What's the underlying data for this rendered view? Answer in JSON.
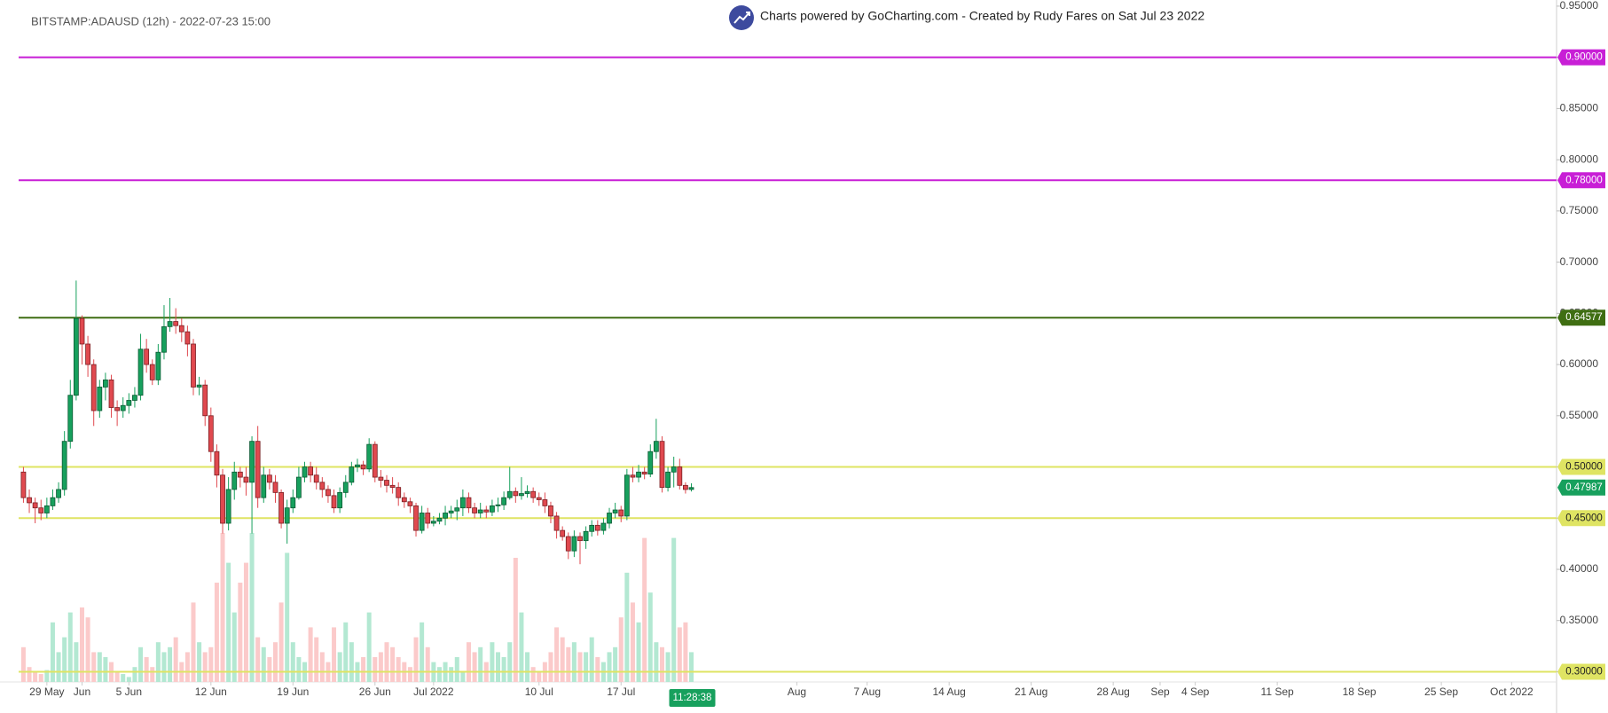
{
  "chart_data": {
    "type": "candlestick",
    "title": "BITSTAMP:ADAUSD (12h) - 2022-07-23 15:00",
    "subtitle": "Charts powered by GoCharting.com - Created by Rudy Fares on Sat Jul 23 2022",
    "up_color": "#17a05d",
    "down_color": "#e0494f",
    "volume_up_color": "#b3e8d2",
    "volume_down_color": "#fbcaca",
    "x": [
      "2022-05-27 00:00",
      "2022-05-27 12:00",
      "2022-05-28 00:00",
      "2022-05-28 12:00",
      "2022-05-29 00:00",
      "2022-05-29 12:00",
      "2022-05-30 00:00",
      "2022-05-30 12:00",
      "2022-05-31 00:00",
      "2022-05-31 12:00",
      "2022-06-01 00:00",
      "2022-06-01 12:00",
      "2022-06-02 00:00",
      "2022-06-02 12:00",
      "2022-06-03 00:00",
      "2022-06-03 12:00",
      "2022-06-04 00:00",
      "2022-06-04 12:00",
      "2022-06-05 00:00",
      "2022-06-05 12:00",
      "2022-06-06 00:00",
      "2022-06-06 12:00",
      "2022-06-07 00:00",
      "2022-06-07 12:00",
      "2022-06-08 00:00",
      "2022-06-08 12:00",
      "2022-06-09 00:00",
      "2022-06-09 12:00",
      "2022-06-10 00:00",
      "2022-06-10 12:00",
      "2022-06-11 00:00",
      "2022-06-11 12:00",
      "2022-06-12 00:00",
      "2022-06-12 12:00",
      "2022-06-13 00:00",
      "2022-06-13 12:00",
      "2022-06-14 00:00",
      "2022-06-14 12:00",
      "2022-06-15 00:00",
      "2022-06-15 12:00",
      "2022-06-16 00:00",
      "2022-06-16 12:00",
      "2022-06-17 00:00",
      "2022-06-17 12:00",
      "2022-06-18 00:00",
      "2022-06-18 12:00",
      "2022-06-19 00:00",
      "2022-06-19 12:00",
      "2022-06-20 00:00",
      "2022-06-20 12:00",
      "2022-06-21 00:00",
      "2022-06-21 12:00",
      "2022-06-22 00:00",
      "2022-06-22 12:00",
      "2022-06-23 00:00",
      "2022-06-23 12:00",
      "2022-06-24 00:00",
      "2022-06-24 12:00",
      "2022-06-25 00:00",
      "2022-06-25 12:00",
      "2022-06-26 00:00",
      "2022-06-26 12:00",
      "2022-06-27 00:00",
      "2022-06-27 12:00",
      "2022-06-28 00:00",
      "2022-06-28 12:00",
      "2022-06-29 00:00",
      "2022-06-29 12:00",
      "2022-06-30 00:00",
      "2022-06-30 12:00",
      "2022-07-01 00:00",
      "2022-07-01 12:00",
      "2022-07-02 00:00",
      "2022-07-02 12:00",
      "2022-07-03 00:00",
      "2022-07-03 12:00",
      "2022-07-04 00:00",
      "2022-07-04 12:00",
      "2022-07-05 00:00",
      "2022-07-05 12:00",
      "2022-07-06 00:00",
      "2022-07-06 12:00",
      "2022-07-07 00:00",
      "2022-07-07 12:00",
      "2022-07-08 00:00",
      "2022-07-08 12:00",
      "2022-07-09 00:00",
      "2022-07-09 12:00",
      "2022-07-10 00:00",
      "2022-07-10 12:00",
      "2022-07-11 00:00",
      "2022-07-11 12:00",
      "2022-07-12 00:00",
      "2022-07-12 12:00",
      "2022-07-13 00:00",
      "2022-07-13 12:00",
      "2022-07-14 00:00",
      "2022-07-14 12:00",
      "2022-07-15 00:00",
      "2022-07-15 12:00",
      "2022-07-16 00:00",
      "2022-07-16 12:00",
      "2022-07-17 00:00",
      "2022-07-17 12:00",
      "2022-07-18 00:00",
      "2022-07-18 12:00",
      "2022-07-19 00:00",
      "2022-07-19 12:00",
      "2022-07-20 00:00",
      "2022-07-20 12:00",
      "2022-07-21 00:00",
      "2022-07-21 12:00",
      "2022-07-22 00:00",
      "2022-07-22 12:00",
      "2022-07-23 00:00"
    ],
    "open": [
      0.495,
      0.47,
      0.465,
      0.46,
      0.455,
      0.462,
      0.47,
      0.478,
      0.525,
      0.57,
      0.645,
      0.62,
      0.6,
      0.555,
      0.578,
      0.585,
      0.558,
      0.555,
      0.56,
      0.565,
      0.57,
      0.615,
      0.6,
      0.585,
      0.612,
      0.637,
      0.642,
      0.638,
      0.632,
      0.62,
      0.578,
      0.58,
      0.55,
      0.515,
      0.492,
      0.445,
      0.478,
      0.495,
      0.49,
      0.485,
      0.525,
      0.47,
      0.492,
      0.485,
      0.475,
      0.445,
      0.46,
      0.47,
      0.49,
      0.5,
      0.492,
      0.485,
      0.478,
      0.472,
      0.46,
      0.475,
      0.485,
      0.5,
      0.502,
      0.498,
      0.522,
      0.49,
      0.487,
      0.482,
      0.48,
      0.47,
      0.466,
      0.462,
      0.438,
      0.455,
      0.445,
      0.447,
      0.45,
      0.455,
      0.457,
      0.46,
      0.47,
      0.46,
      0.455,
      0.458,
      0.456,
      0.462,
      0.463,
      0.47,
      0.476,
      0.472,
      0.474,
      0.476,
      0.47,
      0.468,
      0.462,
      0.452,
      0.438,
      0.432,
      0.418,
      0.432,
      0.428,
      0.437,
      0.443,
      0.438,
      0.445,
      0.455,
      0.458,
      0.452,
      0.492,
      0.49,
      0.495,
      0.493,
      0.515,
      0.525,
      0.48,
      0.495,
      0.5,
      0.482,
      0.478
    ],
    "high": [
      0.5,
      0.478,
      0.47,
      0.468,
      0.47,
      0.478,
      0.485,
      0.535,
      0.585,
      0.682,
      0.648,
      0.628,
      0.605,
      0.585,
      0.592,
      0.59,
      0.565,
      0.568,
      0.572,
      0.578,
      0.63,
      0.625,
      0.605,
      0.62,
      0.658,
      0.665,
      0.655,
      0.645,
      0.638,
      0.625,
      0.588,
      0.585,
      0.558,
      0.522,
      0.498,
      0.49,
      0.505,
      0.5,
      0.5,
      0.53,
      0.54,
      0.5,
      0.498,
      0.492,
      0.478,
      0.468,
      0.478,
      0.5,
      0.505,
      0.505,
      0.5,
      0.49,
      0.482,
      0.478,
      0.48,
      0.492,
      0.505,
      0.508,
      0.506,
      0.528,
      0.525,
      0.497,
      0.492,
      0.49,
      0.485,
      0.475,
      0.47,
      0.465,
      0.462,
      0.46,
      0.452,
      0.455,
      0.462,
      0.462,
      0.468,
      0.478,
      0.475,
      0.465,
      0.465,
      0.462,
      0.468,
      0.47,
      0.476,
      0.5,
      0.48,
      0.49,
      0.482,
      0.48,
      0.475,
      0.475,
      0.466,
      0.456,
      0.442,
      0.436,
      0.438,
      0.436,
      0.442,
      0.448,
      0.448,
      0.45,
      0.46,
      0.465,
      0.462,
      0.498,
      0.5,
      0.502,
      0.5,
      0.522,
      0.547,
      0.53,
      0.5,
      0.51,
      0.508,
      0.485,
      0.484
    ],
    "low": [
      0.465,
      0.455,
      0.445,
      0.448,
      0.45,
      0.458,
      0.465,
      0.472,
      0.518,
      0.565,
      0.6,
      0.588,
      0.54,
      0.548,
      0.565,
      0.548,
      0.54,
      0.548,
      0.552,
      0.558,
      0.565,
      0.592,
      0.58,
      0.58,
      0.605,
      0.632,
      0.63,
      0.622,
      0.608,
      0.57,
      0.57,
      0.54,
      0.505,
      0.48,
      0.435,
      0.438,
      0.468,
      0.48,
      0.472,
      0.435,
      0.46,
      0.465,
      0.478,
      0.465,
      0.44,
      0.425,
      0.455,
      0.468,
      0.485,
      0.485,
      0.478,
      0.47,
      0.465,
      0.455,
      0.455,
      0.47,
      0.482,
      0.495,
      0.492,
      0.495,
      0.485,
      0.48,
      0.475,
      0.474,
      0.462,
      0.46,
      0.455,
      0.432,
      0.435,
      0.44,
      0.442,
      0.444,
      0.443,
      0.45,
      0.448,
      0.452,
      0.455,
      0.45,
      0.45,
      0.45,
      0.452,
      0.456,
      0.458,
      0.468,
      0.465,
      0.468,
      0.47,
      0.465,
      0.462,
      0.455,
      0.445,
      0.43,
      0.428,
      0.41,
      0.412,
      0.405,
      0.42,
      0.432,
      0.433,
      0.434,
      0.44,
      0.45,
      0.446,
      0.448,
      0.485,
      0.485,
      0.488,
      0.49,
      0.508,
      0.475,
      0.476,
      0.48,
      0.478,
      0.474,
      0.476
    ],
    "close": [
      0.47,
      0.465,
      0.46,
      0.455,
      0.462,
      0.47,
      0.478,
      0.525,
      0.57,
      0.645,
      0.62,
      0.6,
      0.555,
      0.578,
      0.585,
      0.558,
      0.555,
      0.56,
      0.565,
      0.57,
      0.615,
      0.6,
      0.585,
      0.612,
      0.637,
      0.642,
      0.638,
      0.632,
      0.62,
      0.578,
      0.58,
      0.55,
      0.515,
      0.492,
      0.445,
      0.478,
      0.495,
      0.49,
      0.485,
      0.525,
      0.47,
      0.492,
      0.485,
      0.475,
      0.445,
      0.46,
      0.47,
      0.49,
      0.5,
      0.492,
      0.485,
      0.478,
      0.472,
      0.46,
      0.475,
      0.485,
      0.5,
      0.502,
      0.498,
      0.522,
      0.49,
      0.487,
      0.482,
      0.48,
      0.47,
      0.466,
      0.462,
      0.438,
      0.455,
      0.445,
      0.447,
      0.45,
      0.455,
      0.457,
      0.46,
      0.47,
      0.46,
      0.455,
      0.458,
      0.456,
      0.462,
      0.463,
      0.47,
      0.476,
      0.472,
      0.474,
      0.476,
      0.47,
      0.468,
      0.462,
      0.452,
      0.438,
      0.432,
      0.418,
      0.432,
      0.428,
      0.437,
      0.443,
      0.438,
      0.445,
      0.455,
      0.458,
      0.452,
      0.492,
      0.49,
      0.495,
      0.493,
      0.515,
      0.525,
      0.48,
      0.495,
      0.5,
      0.482,
      0.478,
      0.47987
    ],
    "volume": [
      35,
      15,
      10,
      8,
      12,
      60,
      30,
      45,
      70,
      40,
      75,
      65,
      30,
      30,
      25,
      20,
      10,
      8,
      5,
      15,
      35,
      25,
      15,
      40,
      30,
      35,
      45,
      20,
      30,
      80,
      40,
      30,
      35,
      100,
      150,
      120,
      70,
      100,
      120,
      150,
      45,
      35,
      25,
      40,
      80,
      130,
      40,
      25,
      20,
      55,
      45,
      30,
      20,
      55,
      30,
      60,
      40,
      20,
      25,
      70,
      25,
      30,
      40,
      35,
      25,
      20,
      15,
      45,
      60,
      35,
      20,
      15,
      20,
      15,
      25,
      10,
      40,
      30,
      35,
      20,
      40,
      30,
      25,
      40,
      125,
      70,
      30,
      15,
      10,
      20,
      30,
      55,
      45,
      35,
      40,
      30,
      30,
      45,
      25,
      20,
      30,
      35,
      65,
      110,
      80,
      60,
      145,
      90,
      40,
      35,
      30,
      145,
      55,
      60,
      30
    ],
    "xlim": [
      "2022-05-25 00:00",
      "2022-10-04 20:00"
    ],
    "xticks": [
      {
        "value": "2022-05-29 00:00",
        "label": "29 May"
      },
      {
        "value": "2022-06-01 00:00",
        "label": "Jun"
      },
      {
        "value": "2022-06-05 00:00",
        "label": "5 Jun"
      },
      {
        "value": "2022-06-12 00:00",
        "label": "12 Jun"
      },
      {
        "value": "2022-06-19 00:00",
        "label": "19 Jun"
      },
      {
        "value": "2022-06-26 00:00",
        "label": "26 Jun"
      },
      {
        "value": "2022-07-01 00:00",
        "label": "Jul 2022"
      },
      {
        "value": "2022-07-10 00:00",
        "label": "10 Jul"
      },
      {
        "value": "2022-07-17 00:00",
        "label": "17 Jul"
      },
      {
        "value": "2022-08-01 00:00",
        "label": "Aug"
      },
      {
        "value": "2022-08-07 00:00",
        "label": "7 Aug"
      },
      {
        "value": "2022-08-14 00:00",
        "label": "14 Aug"
      },
      {
        "value": "2022-08-21 00:00",
        "label": "21 Aug"
      },
      {
        "value": "2022-08-28 00:00",
        "label": "28 Aug"
      },
      {
        "value": "2022-09-01 00:00",
        "label": "Sep"
      },
      {
        "value": "2022-09-04 00:00",
        "label": "4 Sep"
      },
      {
        "value": "2022-09-11 00:00",
        "label": "11 Sep"
      },
      {
        "value": "2022-09-18 00:00",
        "label": "18 Sep"
      },
      {
        "value": "2022-09-25 00:00",
        "label": "25 Sep"
      },
      {
        "value": "2022-10-01 00:00",
        "label": "Oct 2022"
      }
    ],
    "ylim": [
      0.29,
      0.956
    ],
    "yticks": [
      {
        "value": 0.3,
        "label": "0.30000"
      },
      {
        "value": 0.35,
        "label": "0.35000"
      },
      {
        "value": 0.4,
        "label": "0.40000"
      },
      {
        "value": 0.45,
        "label": "0.45000"
      },
      {
        "value": 0.5,
        "label": "0.50000"
      },
      {
        "value": 0.55,
        "label": "0.55000"
      },
      {
        "value": 0.6,
        "label": "0.60000"
      },
      {
        "value": 0.65,
        "label": "0.65000"
      },
      {
        "value": 0.7,
        "label": "0.70000"
      },
      {
        "value": 0.75,
        "label": "0.75000"
      },
      {
        "value": 0.8,
        "label": "0.80000"
      },
      {
        "value": 0.85,
        "label": "0.85000"
      },
      {
        "value": 0.9,
        "label": "0.90000"
      },
      {
        "value": 0.95,
        "label": "0.95000"
      }
    ],
    "levels": [
      {
        "value": 0.9,
        "label": "0.90000",
        "color": "#c81fd6"
      },
      {
        "value": 0.78,
        "label": "0.78000",
        "color": "#c81fd6"
      },
      {
        "value": 0.64577,
        "label": "0.64577",
        "color": "#3f6e12"
      },
      {
        "value": 0.5,
        "label": "0.50000",
        "color": "#dfe463"
      },
      {
        "value": 0.45,
        "label": "0.45000",
        "color": "#dfe463"
      },
      {
        "value": 0.3,
        "label": "0.30000",
        "color": "#dfe463"
      }
    ],
    "last_price": 0.47987,
    "countdown": "11:28:38"
  }
}
